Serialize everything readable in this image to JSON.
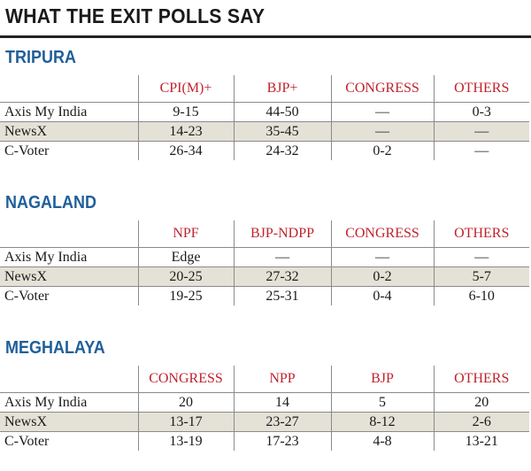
{
  "title": "WHAT THE EXIT POLLS SAY",
  "colors": {
    "section_title": "#1f5f9a",
    "party_header": "#c0222c",
    "shaded_row": "#e4e1d6",
    "rule": "#8a8a8a"
  },
  "sections": [
    {
      "name": "TRIPURA",
      "headers": [
        "CPI(M)+",
        "BJP+",
        "CONGRESS",
        "OTHERS"
      ],
      "rows": [
        {
          "pollster": "Axis My India",
          "values": [
            "9-15",
            "44-50",
            "—",
            "0-3"
          ]
        },
        {
          "pollster": "NewsX",
          "values": [
            "14-23",
            "35-45",
            "—",
            "—"
          ]
        },
        {
          "pollster": "C-Voter",
          "values": [
            "26-34",
            "24-32",
            "0-2",
            "—"
          ]
        }
      ]
    },
    {
      "name": "NAGALAND",
      "headers": [
        "NPF",
        "BJP-NDPP",
        "CONGRESS",
        "OTHERS"
      ],
      "rows": [
        {
          "pollster": "Axis My India",
          "values": [
            "Edge",
            "—",
            "—",
            "—"
          ]
        },
        {
          "pollster": "NewsX",
          "values": [
            "20-25",
            "27-32",
            "0-2",
            "5-7"
          ]
        },
        {
          "pollster": "C-Voter",
          "values": [
            "19-25",
            "25-31",
            "0-4",
            "6-10"
          ]
        }
      ]
    },
    {
      "name": "MEGHALAYA",
      "headers": [
        "CONGRESS",
        "NPP",
        "BJP",
        "OTHERS"
      ],
      "rows": [
        {
          "pollster": "Axis My India",
          "values": [
            "20",
            "14",
            "5",
            "20"
          ]
        },
        {
          "pollster": "NewsX",
          "values": [
            "13-17",
            "23-27",
            "8-12",
            "2-6"
          ]
        },
        {
          "pollster": "C-Voter",
          "values": [
            "13-19",
            "17-23",
            "4-8",
            "13-21"
          ]
        }
      ]
    }
  ]
}
